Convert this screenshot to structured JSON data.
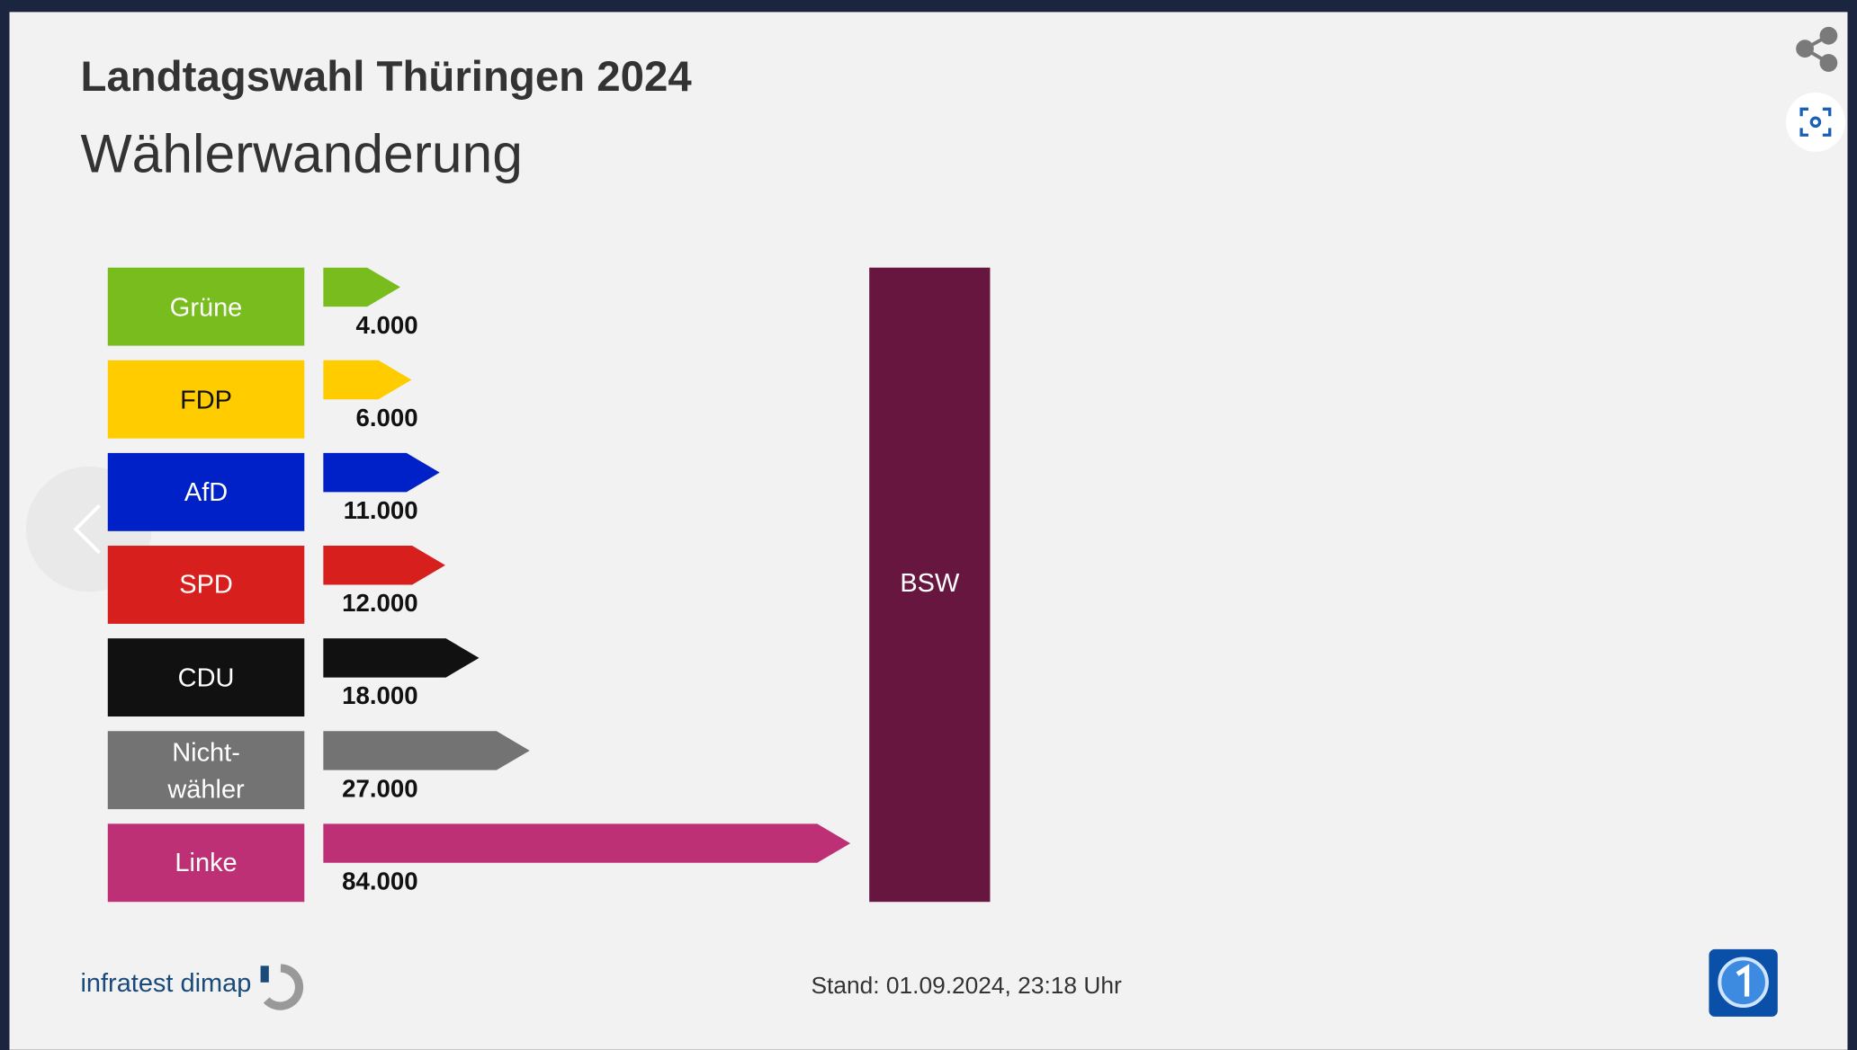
{
  "chart_data": {
    "type": "bar",
    "title": "Landtagswahl Thüringen 2024",
    "subtitle": "Wählerwanderung",
    "categories": [
      "Grüne",
      "FDP",
      "AfD",
      "SPD",
      "CDU",
      "Nicht-\nwähler",
      "Linke"
    ],
    "values": [
      4000,
      6000,
      11000,
      12000,
      18000,
      27000,
      84000
    ],
    "value_labels": [
      "4.000",
      "6.000",
      "11.000",
      "12.000",
      "18.000",
      "27.000",
      "84.000"
    ],
    "colors": [
      "#78bc1e",
      "#ffcc00",
      "#0021c8",
      "#d71f1d",
      "#111111",
      "#737373",
      "#be3075"
    ],
    "target": {
      "label": "BSW",
      "color": "#67173f"
    }
  },
  "footer": {
    "source": "infratest dimap",
    "timestamp": "Stand:  01.09.2024, 23:18 Uhr"
  }
}
